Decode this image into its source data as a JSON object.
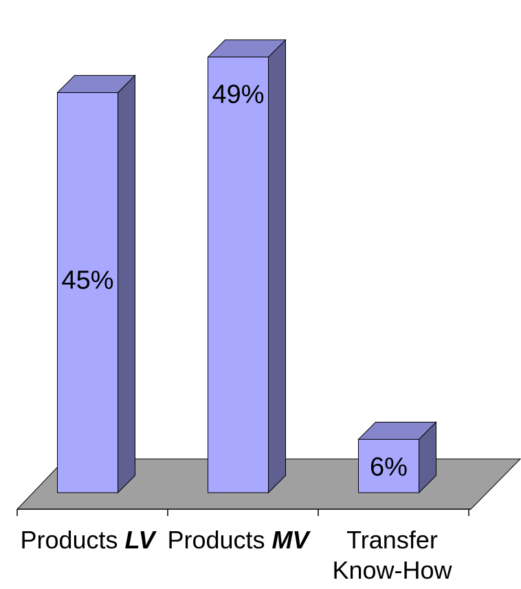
{
  "chart_data": {
    "type": "bar",
    "three_d": true,
    "categories": [
      {
        "prefix": "Products ",
        "emphasis": "LV",
        "lines": []
      },
      {
        "prefix": "Products ",
        "emphasis": "MV",
        "lines": []
      },
      {
        "prefix": "",
        "emphasis": "",
        "lines": [
          "Transfer",
          "Know-How"
        ]
      }
    ],
    "values": [
      45,
      49,
      6
    ],
    "value_labels": [
      "45%",
      "49%",
      "6%"
    ],
    "ylim": [
      0,
      51
    ],
    "title": "",
    "xlabel": "",
    "ylabel": "",
    "grid": false,
    "legend": "none",
    "colors": {
      "bar_front": "#a8a8ff",
      "bar_side": "#5f5f92",
      "bar_top": "#8686cc",
      "floor": "#a0a0a0",
      "stroke": "#000000"
    }
  }
}
